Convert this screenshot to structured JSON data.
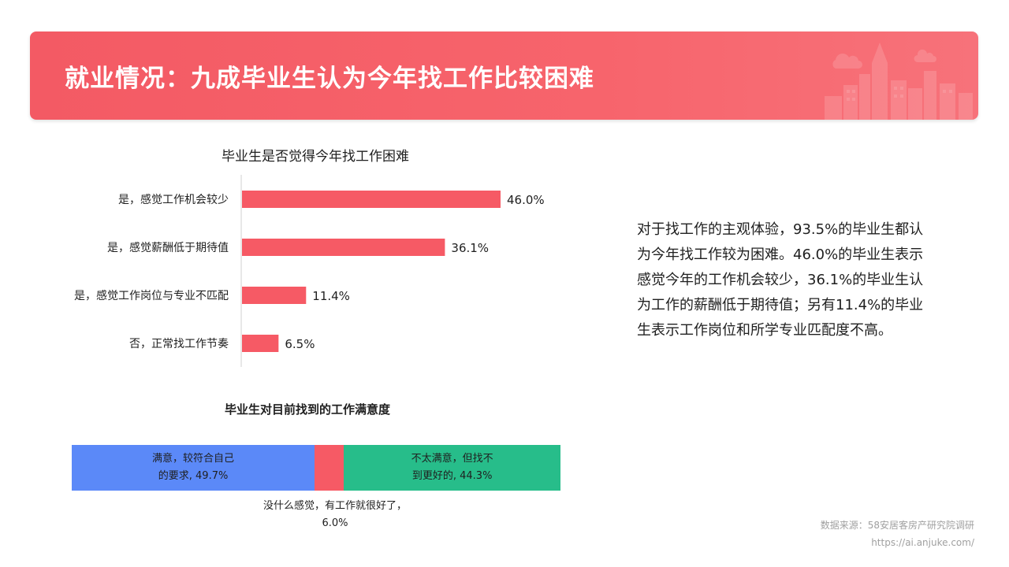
{
  "header": {
    "title": "就业情况：九成毕业生认为今年找工作比较困难"
  },
  "description": "对于找工作的主观体验，93.5%的毕业生都认为今年找工作较为困难。46.0%的毕业生表示感觉今年的工作机会较少，36.1%的毕业生认为工作的薪酬低于期待值；另有11.4%的毕业生表示工作岗位和所学专业匹配度不高。",
  "source": {
    "line1": "数据来源：58安居客房产研究院调研",
    "line2": "https://ai.anjuke.com/"
  },
  "colors": {
    "accent": "#f35a64",
    "bar": "#f65a65",
    "satisfied": "#5b89f8",
    "neutral": "#f65a65",
    "unsatisfied": "#27bd8a"
  },
  "chart_data": [
    {
      "type": "bar",
      "orientation": "horizontal",
      "title": "毕业生是否觉得今年找工作困难",
      "categories": [
        "是，感觉工作机会较少",
        "是，感觉薪酬低于期待值",
        "是，感觉工作岗位与专业不匹配",
        "否，正常找工作节奏"
      ],
      "values": [
        46.0,
        36.1,
        11.4,
        6.5
      ],
      "value_labels": [
        "46.0%",
        "36.1%",
        "11.4%",
        "6.5%"
      ],
      "xlim": [
        0,
        50
      ],
      "grid": false,
      "legend": "none"
    },
    {
      "type": "bar",
      "orientation": "horizontal",
      "stacked": true,
      "title": "毕业生对目前找到的工作满意度",
      "series": [
        {
          "label_lines": [
            "满意，较符合自己",
            "的要求, 49.7%"
          ],
          "value": 49.7
        },
        {
          "label_lines": [
            "没什么感觉，有工作就很好了，",
            "6.0%"
          ],
          "value": 6.0
        },
        {
          "label_lines": [
            "不太满意，但找不",
            "到更好的, 44.3%"
          ],
          "value": 44.3
        }
      ],
      "grid": false,
      "legend": "none"
    }
  ]
}
